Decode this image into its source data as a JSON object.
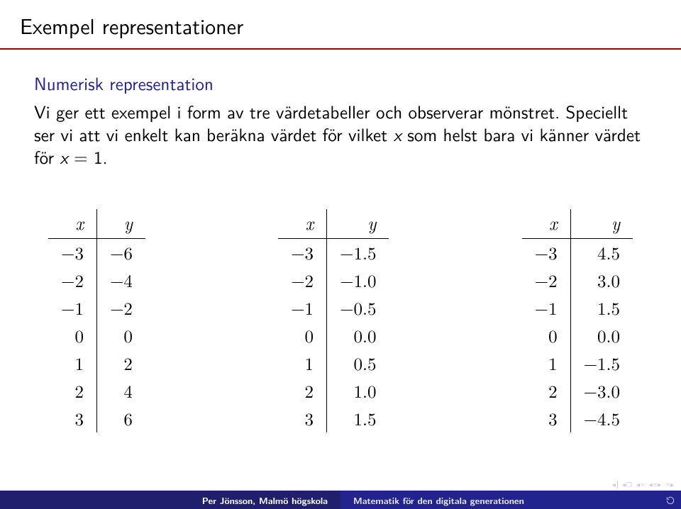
{
  "colors": {
    "rule": "#9a0000",
    "subheading": "#23238e",
    "footer_left_bg": "#1f1f6e",
    "footer_right_bg": "#23238e",
    "nav_symbol": "#c8c8e6",
    "text": "#000000",
    "bg": "#ffffff"
  },
  "title": "Exempel representationer",
  "subheading": "Numerisk representation",
  "paragraph_parts": {
    "p1": "Vi ger ett exempel i form av tre värdetabeller och observerar mönstret. Speciellt ser vi att vi enkelt kan beräkna värdet för vilket ",
    "p2_var": "x",
    "p3": " som helst bara vi känner värdet för ",
    "p4_var": "x",
    "p5": " = 1."
  },
  "tables": [
    {
      "headers": [
        "x",
        "y"
      ],
      "rows": [
        [
          "−3",
          "−6"
        ],
        [
          "−2",
          "−4"
        ],
        [
          "−1",
          "−2"
        ],
        [
          "0",
          "0"
        ],
        [
          "1",
          "2"
        ],
        [
          "2",
          "4"
        ],
        [
          "3",
          "6"
        ]
      ]
    },
    {
      "headers": [
        "x",
        "y"
      ],
      "rows": [
        [
          "−3",
          "−1.5"
        ],
        [
          "−2",
          "−1.0"
        ],
        [
          "−1",
          "−0.5"
        ],
        [
          "0",
          "0.0"
        ],
        [
          "1",
          "0.5"
        ],
        [
          "2",
          "1.0"
        ],
        [
          "3",
          "1.5"
        ]
      ]
    },
    {
      "headers": [
        "x",
        "y"
      ],
      "rows": [
        [
          "−3",
          "4.5"
        ],
        [
          "−2",
          "3.0"
        ],
        [
          "−1",
          "1.5"
        ],
        [
          "0",
          "0.0"
        ],
        [
          "1",
          "−1.5"
        ],
        [
          "2",
          "−3.0"
        ],
        [
          "3",
          "−4.5"
        ]
      ]
    }
  ],
  "footer": {
    "left": "Per Jönsson, Malmö högskola",
    "right": "Matematik för den digitala generationen"
  }
}
